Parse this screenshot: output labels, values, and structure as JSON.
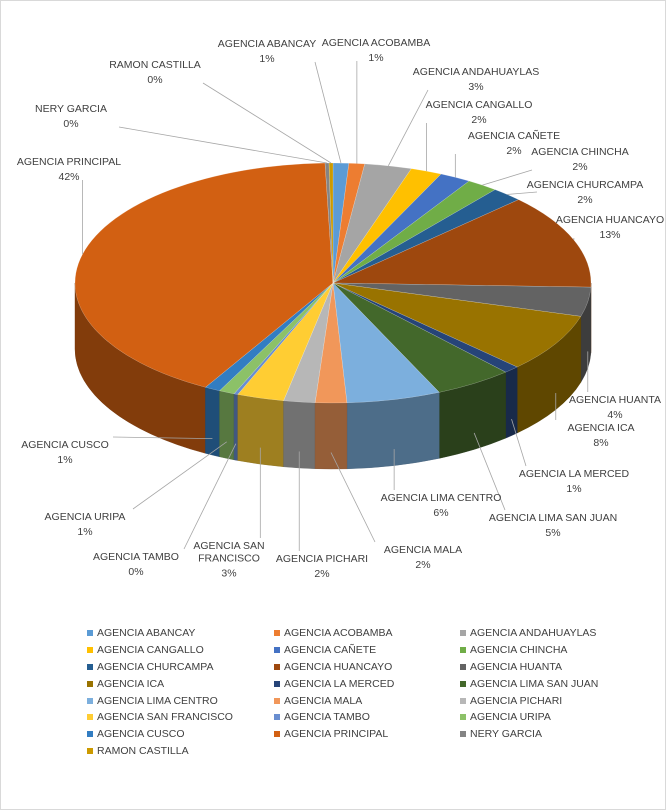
{
  "chart_data": {
    "type": "pie",
    "title": "",
    "legend_position": "bottom",
    "slices": [
      {
        "name": "AGENCIA ABANCAY",
        "value": 1,
        "label": "1%",
        "color": "#5b9bd5"
      },
      {
        "name": "AGENCIA ACOBAMBA",
        "value": 1,
        "label": "1%",
        "color": "#ed7d31"
      },
      {
        "name": "AGENCIA ANDAHUAYLAS",
        "value": 3,
        "label": "3%",
        "color": "#a5a5a5"
      },
      {
        "name": "AGENCIA CANGALLO",
        "value": 2,
        "label": "2%",
        "color": "#ffc000"
      },
      {
        "name": "AGENCIA CAÑETE",
        "value": 2,
        "label": "2%",
        "color": "#4472c4"
      },
      {
        "name": "AGENCIA CHINCHA",
        "value": 2,
        "label": "2%",
        "color": "#70ad47"
      },
      {
        "name": "AGENCIA CHURCAMPA",
        "value": 2,
        "label": "2%",
        "color": "#255e91"
      },
      {
        "name": "AGENCIA HUANCAYO",
        "value": 13,
        "label": "13%",
        "color": "#9e480e"
      },
      {
        "name": "AGENCIA HUANTA",
        "value": 4,
        "label": "4%",
        "color": "#636363"
      },
      {
        "name": "AGENCIA ICA",
        "value": 8,
        "label": "8%",
        "color": "#997300"
      },
      {
        "name": "AGENCIA LA MERCED",
        "value": 1,
        "label": "1%",
        "color": "#264478"
      },
      {
        "name": "AGENCIA LIMA SAN JUAN",
        "value": 5,
        "label": "5%",
        "color": "#43682b"
      },
      {
        "name": "AGENCIA LIMA CENTRO",
        "value": 6,
        "label": "6%",
        "color": "#7cafdd"
      },
      {
        "name": "AGENCIA MALA",
        "value": 2,
        "label": "2%",
        "color": "#f1975a"
      },
      {
        "name": "AGENCIA PICHARI",
        "value": 2,
        "label": "2%",
        "color": "#b7b7b7"
      },
      {
        "name": "AGENCIA SAN FRANCISCO",
        "value": 3,
        "label": "3%",
        "color": "#ffcd33"
      },
      {
        "name": "AGENCIA TAMBO",
        "value": 0,
        "label": "0%",
        "color": "#698ed0"
      },
      {
        "name": "AGENCIA URIPA",
        "value": 1,
        "label": "1%",
        "color": "#8cc168"
      },
      {
        "name": "AGENCIA CUSCO",
        "value": 1,
        "label": "1%",
        "color": "#327dc2"
      },
      {
        "name": "AGENCIA PRINCIPAL",
        "value": 42,
        "label": "42%",
        "color": "#d26012"
      },
      {
        "name": "NERY GARCIA",
        "value": 0,
        "label": "0%",
        "color": "#848484"
      },
      {
        "name": "RAMON CASTILLA",
        "value": 0,
        "label": "0%",
        "color": "#cc9a00"
      }
    ]
  },
  "legend_order": [
    "AGENCIA ABANCAY",
    "AGENCIA ACOBAMBA",
    "AGENCIA ANDAHUAYLAS",
    "AGENCIA CANGALLO",
    "AGENCIA CAÑETE",
    "AGENCIA CHINCHA",
    "AGENCIA CHURCAMPA",
    "AGENCIA HUANCAYO",
    "AGENCIA HUANTA",
    "AGENCIA ICA",
    "AGENCIA LA MERCED",
    "AGENCIA LIMA SAN JUAN",
    "AGENCIA LIMA CENTRO",
    "AGENCIA MALA",
    "AGENCIA PICHARI",
    "AGENCIA SAN FRANCISCO",
    "AGENCIA TAMBO",
    "AGENCIA URIPA",
    "AGENCIA CUSCO",
    "AGENCIA PRINCIPAL",
    "NERY GARCIA",
    "RAMON CASTILLA"
  ]
}
